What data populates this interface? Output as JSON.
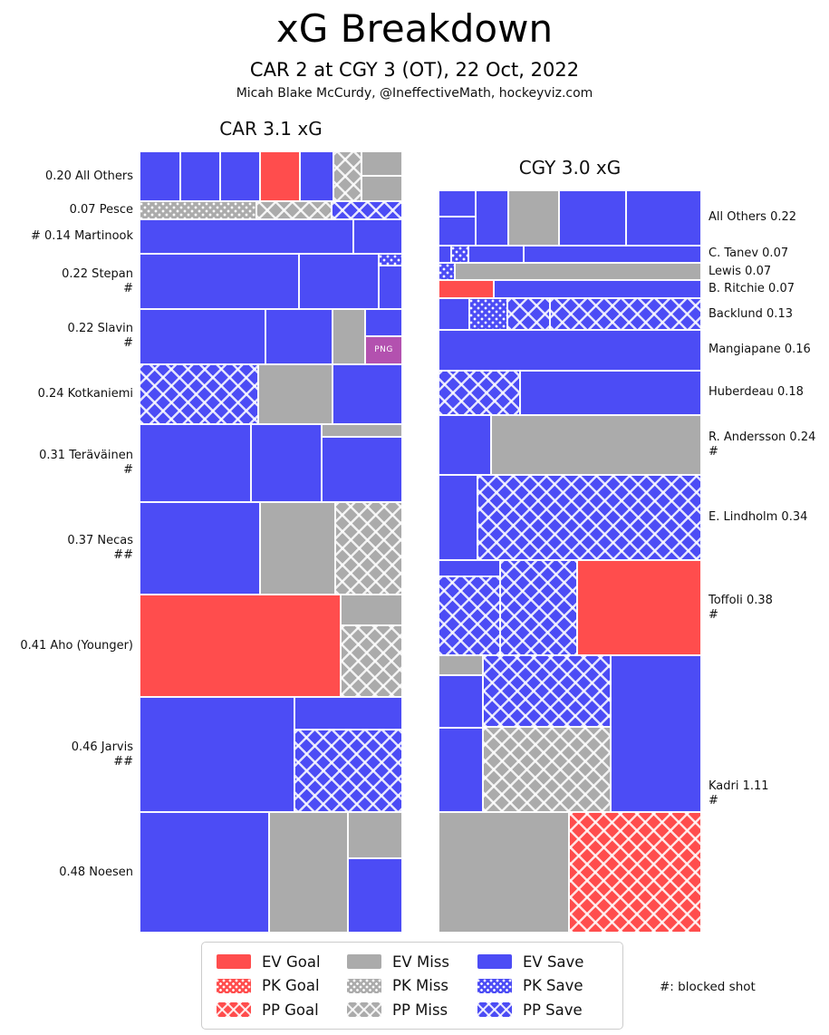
{
  "header": {
    "title": "xG Breakdown",
    "subtitle": "CAR 2 at CGY 3 (OT), 22 Oct, 2022",
    "credit": "Micah Blake McCurdy, @IneffectiveMath, hockeyviz.com"
  },
  "colors": {
    "goal": "#ff4d4d",
    "miss": "#ababab",
    "save": "#4c4cf5",
    "png_button": "#b351af"
  },
  "png_button": {
    "label": "PNG"
  },
  "legend": {
    "note": "#: blocked shot",
    "items": [
      {
        "label": "EV Goal",
        "color": "goal",
        "pattern": "solid"
      },
      {
        "label": "EV Miss",
        "color": "miss",
        "pattern": "solid"
      },
      {
        "label": "EV Save",
        "color": "save",
        "pattern": "solid"
      },
      {
        "label": "PK Goal",
        "color": "goal",
        "pattern": "dot"
      },
      {
        "label": "PK Miss",
        "color": "miss",
        "pattern": "dot"
      },
      {
        "label": "PK Save",
        "color": "save",
        "pattern": "dot"
      },
      {
        "label": "PP Goal",
        "color": "goal",
        "pattern": "cross"
      },
      {
        "label": "PP Miss",
        "color": "miss",
        "pattern": "cross"
      },
      {
        "label": "PP Save",
        "color": "save",
        "pattern": "cross"
      }
    ]
  },
  "chart_data": [
    {
      "type": "mosaic",
      "team": "CAR",
      "title": "CAR 3.1 xG",
      "total_xg": 3.1,
      "label_side": "left",
      "rows": [
        {
          "player": "All Others",
          "xg": 0.2,
          "label_lines": [
            "0.20 All Others"
          ],
          "blocks": [
            {
              "outcome": "ev_save",
              "x": 0.0,
              "w": 0.155,
              "y": 0,
              "h": 1
            },
            {
              "outcome": "ev_save",
              "x": 0.155,
              "w": 0.152,
              "y": 0,
              "h": 1
            },
            {
              "outcome": "ev_save",
              "x": 0.307,
              "w": 0.152,
              "y": 0,
              "h": 1
            },
            {
              "outcome": "ev_goal",
              "x": 0.459,
              "w": 0.151,
              "y": 0,
              "h": 1
            },
            {
              "outcome": "ev_save",
              "x": 0.61,
              "w": 0.128,
              "y": 0,
              "h": 1
            },
            {
              "outcome": "pp_miss",
              "x": 0.738,
              "w": 0.107,
              "y": 0,
              "h": 1
            },
            {
              "outcome": "ev_miss",
              "x": 0.845,
              "w": 0.155,
              "y": 0.0,
              "h": 0.48
            },
            {
              "outcome": "ev_miss",
              "x": 0.845,
              "w": 0.155,
              "y": 0.48,
              "h": 0.52
            }
          ]
        },
        {
          "player": "Pesce",
          "xg": 0.07,
          "label_lines": [
            "0.07 Pesce"
          ],
          "blocks": [
            {
              "outcome": "pk_miss",
              "x": 0.0,
              "w": 0.445,
              "y": 0,
              "h": 1
            },
            {
              "outcome": "pp_miss",
              "x": 0.445,
              "w": 0.286,
              "y": 0,
              "h": 1
            },
            {
              "outcome": "pp_save",
              "x": 0.731,
              "w": 0.269,
              "y": 0,
              "h": 1
            }
          ]
        },
        {
          "player": "Martinook",
          "xg": 0.14,
          "label_lines": [
            "# 0.14 Martinook"
          ],
          "blocks": [
            {
              "outcome": "ev_save",
              "x": 0.0,
              "w": 0.815,
              "y": 0,
              "h": 1
            },
            {
              "outcome": "ev_save",
              "x": 0.815,
              "w": 0.185,
              "y": 0,
              "h": 1
            }
          ]
        },
        {
          "player": "Stepan",
          "xg": 0.22,
          "label_lines": [
            "0.22 Stepan",
            "#"
          ],
          "blocks": [
            {
              "outcome": "ev_save",
              "x": 0.0,
              "w": 0.607,
              "y": 0,
              "h": 1
            },
            {
              "outcome": "ev_save",
              "x": 0.607,
              "w": 0.303,
              "y": 0,
              "h": 1
            },
            {
              "outcome": "pk_save",
              "x": 0.91,
              "w": 0.09,
              "y": 0.0,
              "h": 0.21
            },
            {
              "outcome": "ev_save",
              "x": 0.91,
              "w": 0.09,
              "y": 0.21,
              "h": 0.79
            }
          ]
        },
        {
          "player": "Slavin",
          "xg": 0.22,
          "label_lines": [
            "0.22 Slavin",
            "#"
          ],
          "blocks": [
            {
              "outcome": "ev_save",
              "x": 0.0,
              "w": 0.479,
              "y": 0,
              "h": 1
            },
            {
              "outcome": "ev_save",
              "x": 0.479,
              "w": 0.255,
              "y": 0,
              "h": 1
            },
            {
              "outcome": "ev_miss",
              "x": 0.734,
              "w": 0.125,
              "y": 0,
              "h": 1
            },
            {
              "outcome": "ev_save",
              "x": 0.859,
              "w": 0.141,
              "y": 0.0,
              "h": 0.49
            },
            {
              "outcome": "png",
              "x": 0.859,
              "w": 0.141,
              "y": 0.49,
              "h": 0.51
            }
          ]
        },
        {
          "player": "Kotkaniemi",
          "xg": 0.24,
          "label_lines": [
            "0.24 Kotkaniemi"
          ],
          "blocks": [
            {
              "outcome": "pp_save",
              "x": 0.0,
              "w": 0.452,
              "y": 0,
              "h": 1
            },
            {
              "outcome": "ev_miss",
              "x": 0.452,
              "w": 0.282,
              "y": 0,
              "h": 1
            },
            {
              "outcome": "ev_save",
              "x": 0.734,
              "w": 0.266,
              "y": 0,
              "h": 1
            }
          ]
        },
        {
          "player": "Teräväinen",
          "xg": 0.31,
          "label_lines": [
            "0.31 Teräväinen",
            "#"
          ],
          "blocks": [
            {
              "outcome": "ev_save",
              "x": 0.0,
              "w": 0.424,
              "y": 0,
              "h": 1
            },
            {
              "outcome": "ev_save",
              "x": 0.424,
              "w": 0.269,
              "y": 0,
              "h": 1
            },
            {
              "outcome": "ev_miss",
              "x": 0.693,
              "w": 0.307,
              "y": 0.0,
              "h": 0.16
            },
            {
              "outcome": "ev_save",
              "x": 0.693,
              "w": 0.307,
              "y": 0.16,
              "h": 0.84
            }
          ]
        },
        {
          "player": "Necas",
          "xg": 0.37,
          "label_lines": [
            "0.37 Necas",
            "##"
          ],
          "blocks": [
            {
              "outcome": "ev_save",
              "x": 0.0,
              "w": 0.459,
              "y": 0,
              "h": 1
            },
            {
              "outcome": "ev_miss",
              "x": 0.459,
              "w": 0.286,
              "y": 0,
              "h": 1
            },
            {
              "outcome": "pp_miss",
              "x": 0.745,
              "w": 0.255,
              "y": 0,
              "h": 1
            }
          ]
        },
        {
          "player": "Aho (Younger)",
          "xg": 0.41,
          "label_lines": [
            "0.41 Aho (Younger)"
          ],
          "blocks": [
            {
              "outcome": "ev_goal",
              "x": 0.0,
              "w": 0.766,
              "y": 0,
              "h": 1
            },
            {
              "outcome": "ev_miss",
              "x": 0.766,
              "w": 0.234,
              "y": 0.0,
              "h": 0.3
            },
            {
              "outcome": "pp_miss",
              "x": 0.766,
              "w": 0.234,
              "y": 0.3,
              "h": 0.7
            }
          ]
        },
        {
          "player": "Jarvis",
          "xg": 0.46,
          "label_lines": [
            "0.46 Jarvis",
            "##"
          ],
          "blocks": [
            {
              "outcome": "ev_save",
              "x": 0.0,
              "w": 0.59,
              "y": 0,
              "h": 1
            },
            {
              "outcome": "ev_save",
              "x": 0.59,
              "w": 0.41,
              "y": 0.0,
              "h": 0.28
            },
            {
              "outcome": "pp_save",
              "x": 0.59,
              "w": 0.41,
              "y": 0.28,
              "h": 0.72
            }
          ]
        },
        {
          "player": "Noesen",
          "xg": 0.48,
          "label_lines": [
            "0.48 Noesen"
          ],
          "blocks": [
            {
              "outcome": "ev_save",
              "x": 0.0,
              "w": 0.493,
              "y": 0,
              "h": 1
            },
            {
              "outcome": "ev_miss",
              "x": 0.493,
              "w": 0.3,
              "y": 0,
              "h": 1
            },
            {
              "outcome": "ev_miss",
              "x": 0.793,
              "w": 0.207,
              "y": 0.0,
              "h": 0.38
            },
            {
              "outcome": "ev_save",
              "x": 0.793,
              "w": 0.207,
              "y": 0.38,
              "h": 0.62
            }
          ]
        }
      ]
    },
    {
      "type": "mosaic",
      "team": "CGY",
      "title": "CGY 3.0 xG",
      "total_xg": 3.0,
      "label_side": "right",
      "rows": [
        {
          "player": "All Others",
          "xg": 0.22,
          "label_lines": [
            "All Others 0.22"
          ],
          "blocks": [
            {
              "outcome": "ev_save",
              "x": 0.0,
              "w": 0.141,
              "y": 0.0,
              "h": 0.48
            },
            {
              "outcome": "ev_save",
              "x": 0.0,
              "w": 0.141,
              "y": 0.48,
              "h": 0.52
            },
            {
              "outcome": "ev_save",
              "x": 0.141,
              "w": 0.125,
              "y": 0,
              "h": 1
            },
            {
              "outcome": "ev_miss",
              "x": 0.266,
              "w": 0.193,
              "y": 0,
              "h": 1
            },
            {
              "outcome": "ev_save",
              "x": 0.459,
              "w": 0.255,
              "y": 0,
              "h": 1
            },
            {
              "outcome": "ev_save",
              "x": 0.714,
              "w": 0.286,
              "y": 0,
              "h": 1
            }
          ]
        },
        {
          "player": "C. Tanev",
          "xg": 0.07,
          "label_lines": [
            "C. Tanev 0.07"
          ],
          "blocks": [
            {
              "outcome": "ev_save",
              "x": 0.0,
              "w": 0.048,
              "y": 0,
              "h": 1
            },
            {
              "outcome": "pk_save",
              "x": 0.048,
              "w": 0.066,
              "y": 0,
              "h": 1
            },
            {
              "outcome": "ev_save",
              "x": 0.114,
              "w": 0.21,
              "y": 0,
              "h": 1
            },
            {
              "outcome": "ev_save",
              "x": 0.324,
              "w": 0.676,
              "y": 0,
              "h": 1
            }
          ]
        },
        {
          "player": "Lewis",
          "xg": 0.07,
          "label_lines": [
            "Lewis 0.07"
          ],
          "blocks": [
            {
              "outcome": "pk_save",
              "x": 0.0,
              "w": 0.062,
              "y": 0,
              "h": 1
            },
            {
              "outcome": "ev_miss",
              "x": 0.062,
              "w": 0.938,
              "y": 0,
              "h": 1
            }
          ]
        },
        {
          "player": "B. Ritchie",
          "xg": 0.07,
          "label_lines": [
            "B. Ritchie 0.07"
          ],
          "blocks": [
            {
              "outcome": "ev_goal",
              "x": 0.0,
              "w": 0.21,
              "y": 0,
              "h": 1
            },
            {
              "outcome": "ev_save",
              "x": 0.21,
              "w": 0.79,
              "y": 0,
              "h": 1
            }
          ]
        },
        {
          "player": "Backlund",
          "xg": 0.13,
          "label_lines": [
            "Backlund 0.13"
          ],
          "blocks": [
            {
              "outcome": "ev_save",
              "x": 0.0,
              "w": 0.117,
              "y": 0,
              "h": 1
            },
            {
              "outcome": "pk_save",
              "x": 0.117,
              "w": 0.145,
              "y": 0,
              "h": 1
            },
            {
              "outcome": "pp_save",
              "x": 0.262,
              "w": 0.162,
              "y": 0,
              "h": 1
            },
            {
              "outcome": "pp_save",
              "x": 0.424,
              "w": 0.576,
              "y": 0,
              "h": 1
            }
          ]
        },
        {
          "player": "Mangiapane",
          "xg": 0.16,
          "label_lines": [
            "Mangiapane 0.16"
          ],
          "blocks": [
            {
              "outcome": "ev_save",
              "x": 0.0,
              "w": 1.0,
              "y": 0,
              "h": 1
            }
          ]
        },
        {
          "player": "Huberdeau",
          "xg": 0.18,
          "label_lines": [
            "Huberdeau 0.18"
          ],
          "blocks": [
            {
              "outcome": "pp_save",
              "x": 0.0,
              "w": 0.31,
              "y": 0,
              "h": 1
            },
            {
              "outcome": "ev_save",
              "x": 0.31,
              "w": 0.69,
              "y": 0,
              "h": 1
            }
          ]
        },
        {
          "player": "R. Andersson",
          "xg": 0.24,
          "label_lines": [
            "R. Andersson 0.24",
            "#"
          ],
          "blocks": [
            {
              "outcome": "ev_save",
              "x": 0.0,
              "w": 0.2,
              "y": 0,
              "h": 1
            },
            {
              "outcome": "ev_miss",
              "x": 0.2,
              "w": 0.8,
              "y": 0,
              "h": 1
            }
          ]
        },
        {
          "player": "E. Lindholm",
          "xg": 0.34,
          "label_lines": [
            "E. Lindholm 0.34"
          ],
          "blocks": [
            {
              "outcome": "ev_save",
              "x": 0.0,
              "w": 0.148,
              "y": 0,
              "h": 1
            },
            {
              "outcome": "pp_save",
              "x": 0.148,
              "w": 0.852,
              "y": 0,
              "h": 1
            }
          ]
        },
        {
          "player": "Toffoli",
          "xg": 0.38,
          "label_lines": [
            "Toffoli 0.38",
            "#"
          ],
          "blocks": [
            {
              "outcome": "ev_save",
              "x": 0.0,
              "w": 0.234,
              "y": 0.0,
              "h": 0.17
            },
            {
              "outcome": "pp_save",
              "x": 0.0,
              "w": 0.234,
              "y": 0.17,
              "h": 0.83
            },
            {
              "outcome": "pp_save",
              "x": 0.234,
              "w": 0.294,
              "y": 0,
              "h": 1
            },
            {
              "outcome": "ev_goal",
              "x": 0.528,
              "w": 0.472,
              "y": 0,
              "h": 1
            }
          ]
        },
        {
          "player": "Kadri",
          "xg": 1.11,
          "label_lines": [
            "Kadri 1.11",
            "#"
          ],
          "blocks": [
            {
              "outcome": "ev_miss",
              "x": 0.0,
              "w": 0.169,
              "y": 0.0,
              "h": 0.073
            },
            {
              "outcome": "ev_save",
              "x": 0.0,
              "w": 0.169,
              "y": 0.073,
              "h": 0.19
            },
            {
              "outcome": "ev_save",
              "x": 0.0,
              "w": 0.169,
              "y": 0.263,
              "h": 0.303
            },
            {
              "outcome": "pp_save",
              "x": 0.169,
              "w": 0.486,
              "y": 0.0,
              "h": 0.258
            },
            {
              "outcome": "pp_miss",
              "x": 0.169,
              "w": 0.486,
              "y": 0.258,
              "h": 0.308
            },
            {
              "outcome": "ev_save",
              "x": 0.655,
              "w": 0.345,
              "y": 0.0,
              "h": 0.566
            },
            {
              "outcome": "ev_miss",
              "x": 0.0,
              "w": 0.497,
              "y": 0.566,
              "h": 0.434
            },
            {
              "outcome": "pp_goal",
              "x": 0.497,
              "w": 0.503,
              "y": 0.566,
              "h": 0.434
            }
          ]
        }
      ]
    }
  ]
}
